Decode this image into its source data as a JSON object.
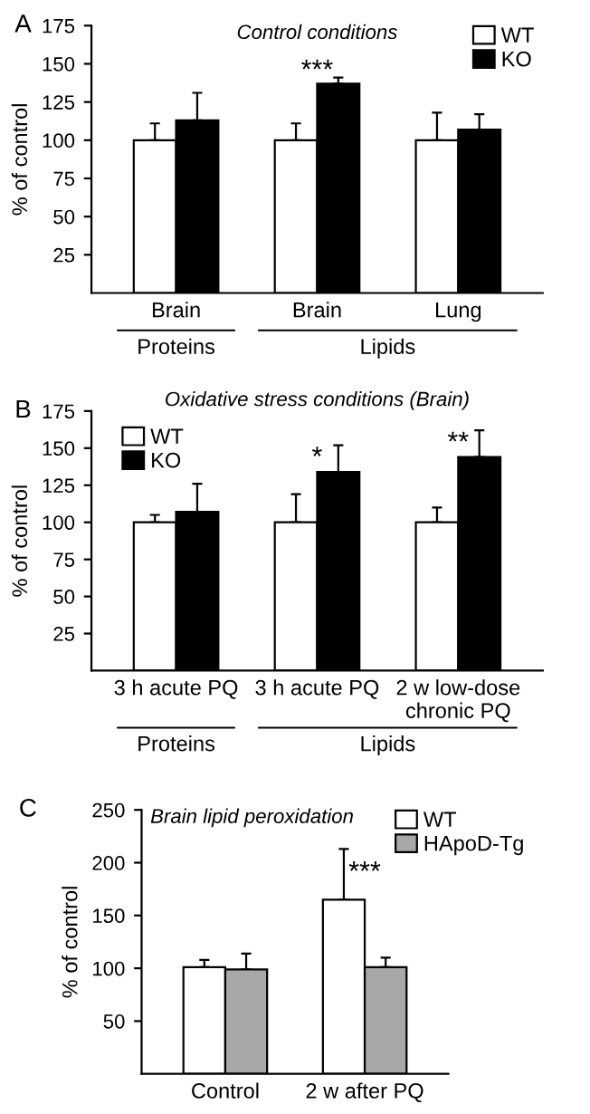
{
  "chart_data": [
    {
      "type": "bar",
      "title": "Control conditions",
      "ylabel": "% of control",
      "categories": [
        "Brain",
        "Brain",
        "Lung"
      ],
      "ylim": [
        0,
        175
      ],
      "yticks": [
        25,
        50,
        75,
        100,
        125,
        150,
        175
      ],
      "legend": "top right",
      "grid": false,
      "series": [
        {
          "name": "WT",
          "color": "#ffffff",
          "values": [
            100,
            100,
            100
          ],
          "errors": [
            [
              100,
              111
            ],
            [
              100,
              111
            ],
            [
              100,
              118
            ]
          ]
        },
        {
          "name": "KO",
          "color": "#000000",
          "values": [
            113,
            137,
            107
          ],
          "errors": [
            [
              113,
              131
            ],
            [
              137,
              141
            ],
            [
              107,
              117
            ]
          ]
        }
      ],
      "annotations": [
        "A",
        "***",
        "Proteins",
        "Lipids"
      ]
    },
    {
      "type": "bar",
      "title": "Oxidative stress conditions (Brain)",
      "ylabel": "% of control",
      "categories": [
        "3 h acute PQ",
        "3 h acute PQ",
        "2 w low-dose\nchronic PQ"
      ],
      "ylim": [
        0,
        175
      ],
      "yticks": [
        25,
        50,
        75,
        100,
        125,
        150,
        175
      ],
      "legend": "top left",
      "grid": false,
      "series": [
        {
          "name": "WT",
          "color": "#ffffff",
          "values": [
            100,
            100,
            100
          ],
          "errors": [
            [
              100,
              105
            ],
            [
              100,
              119
            ],
            [
              100,
              110
            ]
          ]
        },
        {
          "name": "KO",
          "color": "#000000",
          "values": [
            107,
            134,
            144
          ],
          "errors": [
            [
              107,
              126
            ],
            [
              134,
              152
            ],
            [
              144,
              162
            ]
          ]
        }
      ],
      "annotations": [
        "B",
        "*",
        "**",
        "Proteins",
        "Lipids"
      ]
    },
    {
      "type": "bar",
      "title": "Brain lipid peroxidation",
      "ylabel": "% of control",
      "categories": [
        "Control",
        "2 w after PQ"
      ],
      "ylim": [
        0,
        250
      ],
      "yticks": [
        50,
        100,
        150,
        200,
        250
      ],
      "legend": "top right",
      "grid": false,
      "series": [
        {
          "name": "WT",
          "color": "#ffffff",
          "values": [
            101,
            165
          ],
          "errors": [
            [
              101,
              108
            ],
            [
              165,
              213
            ]
          ]
        },
        {
          "name": "HApoD-Tg",
          "color": "#a8a8a8",
          "values": [
            99,
            101
          ],
          "errors": [
            [
              99,
              114
            ],
            [
              101,
              110
            ]
          ]
        }
      ],
      "annotations": [
        "C",
        "***"
      ]
    }
  ]
}
